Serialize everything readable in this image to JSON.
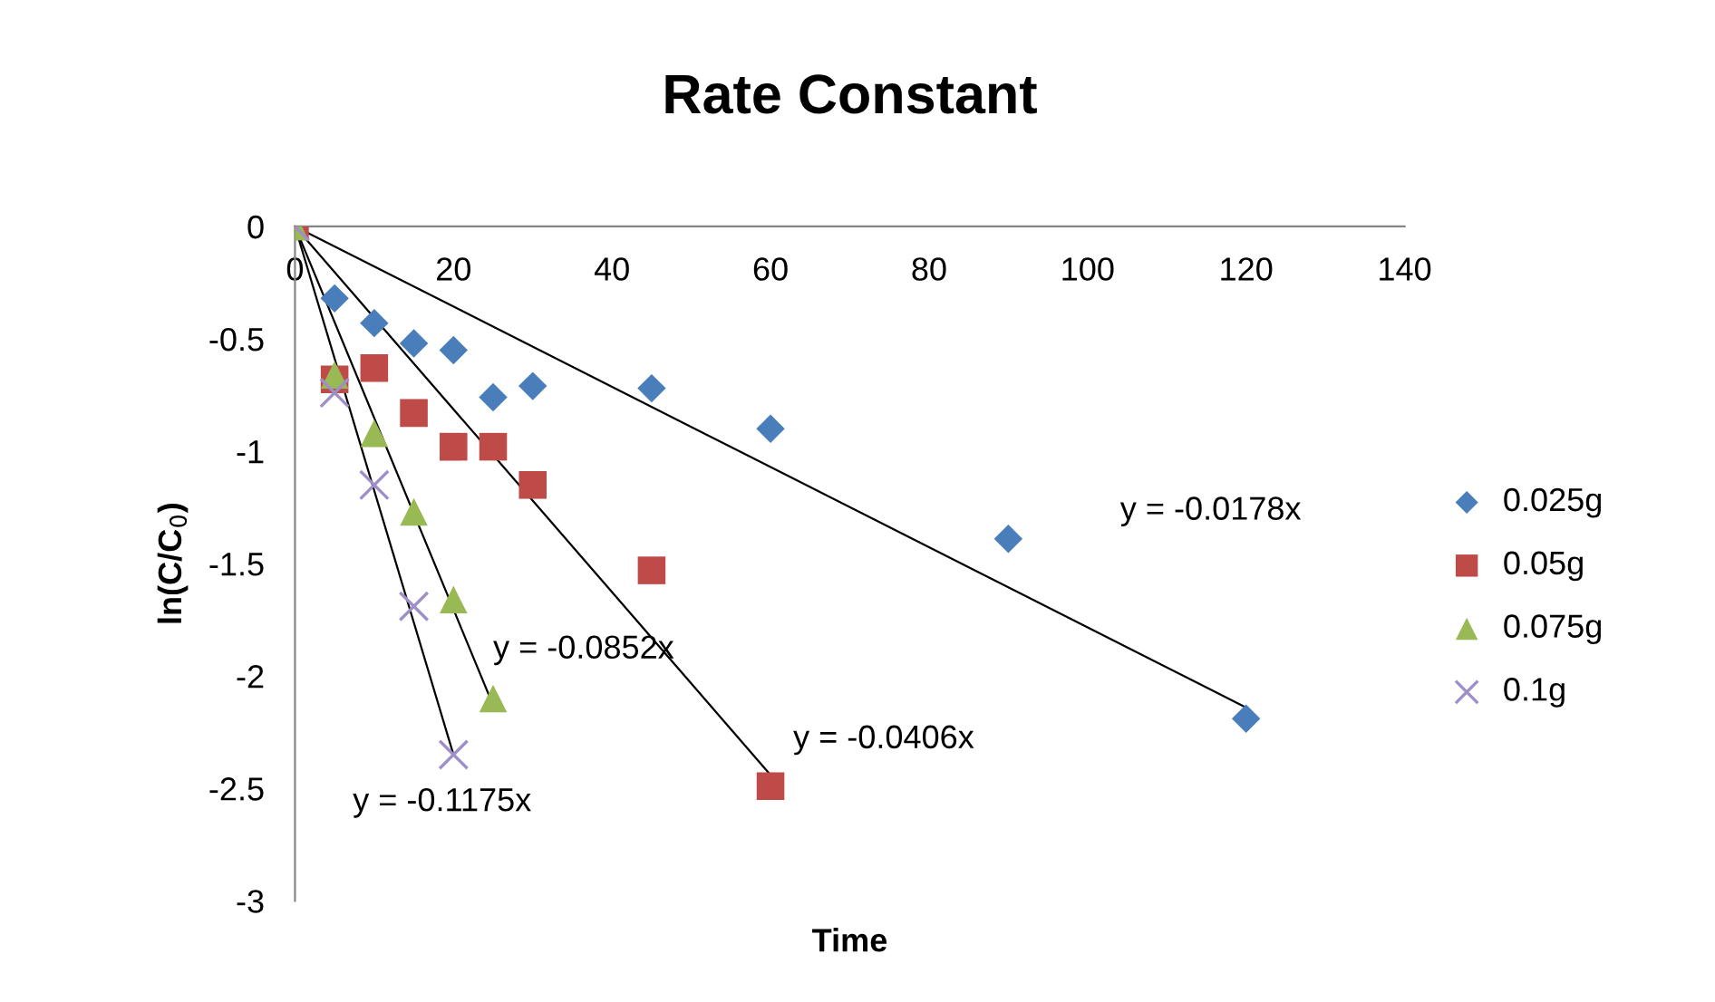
{
  "chart_data": {
    "type": "scatter",
    "title": "Rate Constant",
    "xlabel": "Time",
    "ylabel": "ln(C/C$_{0}$)",
    "xlim": [
      0,
      140
    ],
    "xticks": [
      0,
      20,
      40,
      60,
      80,
      100,
      120,
      140
    ],
    "ylim": [
      -3,
      0
    ],
    "yticks": [
      -3,
      -2.5,
      -2,
      -1.5,
      -1,
      -0.5,
      0
    ],
    "grid": false,
    "legend": "right",
    "series": [
      {
        "name": "0.025g",
        "color": "#4a7ebb",
        "marker": "diamond",
        "x": [
          5,
          10,
          15,
          20,
          25,
          30,
          45,
          60,
          90,
          120
        ],
        "values": [
          -0.32,
          -0.43,
          -0.52,
          -0.55,
          -0.76,
          -0.71,
          -0.72,
          -0.9,
          -1.39,
          -2.19
        ]
      },
      {
        "name": "0.05g",
        "color": "#be4b48",
        "marker": "square",
        "x": [
          0,
          5,
          10,
          15,
          20,
          25,
          30,
          45,
          60
        ],
        "values": [
          0,
          -0.68,
          -0.63,
          -0.83,
          -0.98,
          -0.98,
          -1.15,
          -1.53,
          -2.49
        ]
      },
      {
        "name": "0.075g",
        "color": "#98b954",
        "marker": "triangle",
        "x": [
          0,
          5,
          10,
          15,
          20,
          25
        ],
        "values": [
          0,
          -0.66,
          -0.92,
          -1.27,
          -1.66,
          -2.1
        ]
      },
      {
        "name": "0.1g",
        "color": "#9f8fc8",
        "marker": "cross",
        "x": [
          0,
          5,
          10,
          15,
          20
        ],
        "values": [
          0,
          -0.74,
          -1.15,
          -1.69,
          -2.35
        ]
      },
      {
        "type": "line",
        "color": "#000000",
        "marker": "none",
        "x": [
          0,
          120
        ],
        "values": [
          0,
          -2.14
        ]
      },
      {
        "type": "line",
        "color": "#000000",
        "marker": "none",
        "x": [
          0,
          60
        ],
        "values": [
          0,
          -2.44
        ]
      },
      {
        "type": "line",
        "color": "#000000",
        "marker": "none",
        "x": [
          0,
          25
        ],
        "values": [
          0,
          -2.13
        ]
      },
      {
        "type": "line",
        "color": "#000000",
        "marker": "none",
        "x": [
          0,
          20
        ],
        "values": [
          0,
          -2.35
        ]
      }
    ],
    "annotations": [
      "y = -0.0178x",
      "y = -0.0406x",
      "y = -0.0852x",
      "y = -0.1175x"
    ]
  }
}
